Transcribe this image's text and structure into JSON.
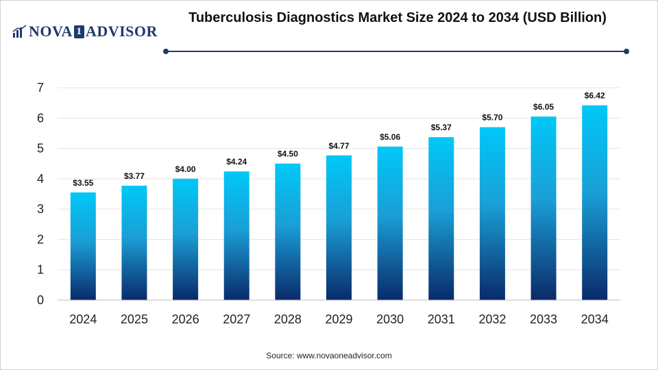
{
  "header": {
    "logo_left": "NOVA",
    "logo_mark": "1",
    "logo_right": "ADVISOR",
    "title": "Tuberculosis Diagnostics Market Size 2024 to 2034 (USD Billion)"
  },
  "footer": {
    "source": "Source: www.novaoneadvisor.com"
  },
  "colors": {
    "bar_top": "#00c8f8",
    "bar_bottom": "#0a2a6a",
    "brand": "#1f3a6b",
    "grid": "#e3e3e3"
  },
  "chart_data": {
    "type": "bar",
    "title": "Tuberculosis Diagnostics Market Size 2024 to 2034 (USD Billion)",
    "categories": [
      "2024",
      "2025",
      "2026",
      "2027",
      "2028",
      "2029",
      "2030",
      "2031",
      "2032",
      "2033",
      "2034"
    ],
    "values": [
      3.55,
      3.77,
      4.0,
      4.24,
      4.5,
      4.77,
      5.06,
      5.37,
      5.7,
      6.05,
      6.42
    ],
    "value_labels": [
      "$3.55",
      "$3.77",
      "$4.00",
      "$4.24",
      "$4.50",
      "$4.77",
      "$5.06",
      "$5.37",
      "$5.70",
      "$6.05",
      "$6.42"
    ],
    "yticks": [
      "0",
      "1",
      "2",
      "3",
      "4",
      "5",
      "6",
      "7"
    ],
    "ylim": [
      0,
      7
    ],
    "xlabel": "",
    "ylabel": "",
    "grid": true,
    "legend": "none"
  }
}
